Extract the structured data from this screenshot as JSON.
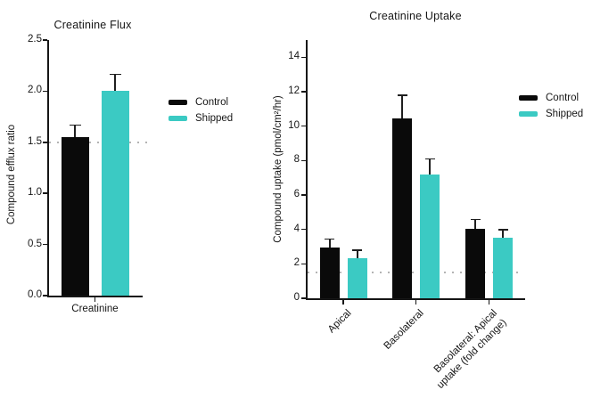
{
  "figure": {
    "background": "#ffffff",
    "accent_teal": "#3bcac3",
    "bar_black": "#0a0a0a"
  },
  "chart_data": [
    {
      "type": "bar",
      "title": "Creatinine Flux",
      "ylabel": "Compound efflux ratio",
      "xlabel": "",
      "categories": [
        "Creatinine"
      ],
      "series": [
        {
          "name": "Control",
          "color": "#0a0a0a",
          "values": [
            1.55
          ],
          "errors_plus": [
            0.11
          ]
        },
        {
          "name": "Shipped",
          "color": "#3bcac3",
          "values": [
            2.0
          ],
          "errors_plus": [
            0.16
          ]
        }
      ],
      "ylim": [
        0,
        2.5
      ],
      "yticks": [
        "0.0",
        "0.5",
        "1.0",
        "1.5",
        "2.0",
        "2.5"
      ],
      "reference_line_y": 1.5,
      "legend_position": "right-of-plot",
      "legend_entries": [
        "Control",
        "Shipped"
      ],
      "grid": false
    },
    {
      "type": "bar",
      "title": "Creatinine Uptake",
      "ylabel": "Compound uptake (pmol/cm²/hr)",
      "xlabel": "",
      "categories": [
        "Apical",
        "Basolateral",
        "Basolateral: Apical\nuptake (fold change)"
      ],
      "series": [
        {
          "name": "Control",
          "color": "#0a0a0a",
          "values": [
            2.95,
            10.45,
            4.05
          ],
          "errors_plus": [
            0.45,
            1.3,
            0.5
          ]
        },
        {
          "name": "Shipped",
          "color": "#3bcac3",
          "values": [
            2.35,
            7.2,
            3.5
          ],
          "errors_plus": [
            0.4,
            0.85,
            0.45
          ]
        }
      ],
      "ylim": [
        0,
        15
      ],
      "yticks": [
        "0",
        "2",
        "4",
        "6",
        "8",
        "10",
        "12",
        "14"
      ],
      "reference_line_y": 1.5,
      "legend_position": "right-of-plot",
      "legend_entries": [
        "Control",
        "Shipped"
      ],
      "grid": false
    }
  ]
}
